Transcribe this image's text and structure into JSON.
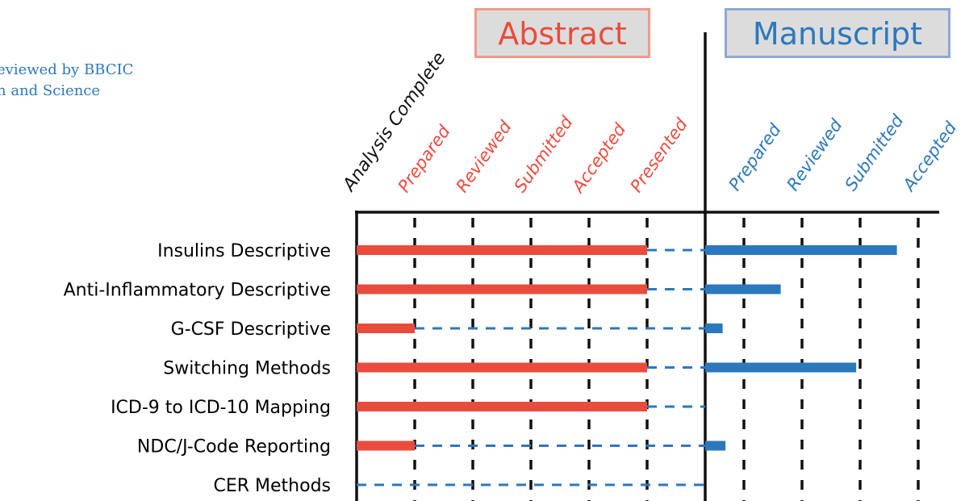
{
  "header_note": {
    "line1": "eviewed by BBCIC",
    "line2": "n and Science"
  },
  "phases": {
    "abstract": "Abstract",
    "manuscript": "Manuscript"
  },
  "columns": {
    "milestone": "Analysis Complete",
    "abstract": [
      "Prepared",
      "Reviewed",
      "Submitted",
      "Accepted",
      "Presented"
    ],
    "manuscript": [
      "Prepared",
      "Reviewed",
      "Submitted",
      "Accepted"
    ]
  },
  "colors": {
    "abstract": "#e94c3d",
    "manuscript": "#2c78bd",
    "axis": "#111111"
  },
  "chart_data": {
    "type": "bar",
    "categories": [
      "Insulins Descriptive",
      "Anti-Inflammatory Descriptive",
      "G-CSF Descriptive",
      "Switching Methods",
      "ICD-9 to ICD-10 Mapping",
      "NDC/J-Code Reporting",
      "CER Methods"
    ],
    "stages": [
      "Analysis Complete",
      "Prepared",
      "Reviewed",
      "Submitted",
      "Accepted",
      "Presented",
      "Prepared",
      "Reviewed",
      "Submitted",
      "Accepted"
    ],
    "series": [
      {
        "name": "Abstract",
        "values": [
          5,
          5,
          1,
          5,
          5,
          1,
          0
        ]
      },
      {
        "name": "Manuscript",
        "values": [
          3.3,
          1.3,
          0.3,
          2.6,
          0,
          0.35,
          0
        ]
      }
    ],
    "grid": true
  }
}
